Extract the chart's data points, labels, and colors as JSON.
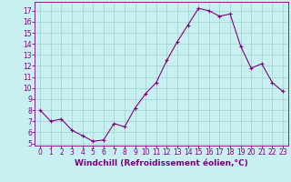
{
  "x": [
    0,
    1,
    2,
    3,
    4,
    5,
    6,
    7,
    8,
    9,
    10,
    11,
    12,
    13,
    14,
    15,
    16,
    17,
    18,
    19,
    20,
    21,
    22,
    23
  ],
  "y": [
    8.0,
    7.0,
    7.2,
    6.2,
    5.7,
    5.2,
    5.3,
    6.8,
    6.5,
    8.2,
    9.5,
    10.5,
    12.5,
    14.2,
    15.7,
    17.2,
    17.0,
    16.5,
    16.7,
    13.8,
    11.8,
    12.2,
    10.5,
    9.7
  ],
  "line_color": "#800080",
  "marker": "+",
  "marker_size": 3,
  "marker_lw": 0.8,
  "line_width": 0.8,
  "bg_color": "#c8f0f0",
  "grid_color": "#a0d0d0",
  "xlabel": "Windchill (Refroidissement éolien,°C)",
  "xlim": [
    -0.5,
    23.5
  ],
  "ylim": [
    4.8,
    17.8
  ],
  "yticks": [
    5,
    6,
    7,
    8,
    9,
    10,
    11,
    12,
    13,
    14,
    15,
    16,
    17
  ],
  "xticks": [
    0,
    1,
    2,
    3,
    4,
    5,
    6,
    7,
    8,
    9,
    10,
    11,
    12,
    13,
    14,
    15,
    16,
    17,
    18,
    19,
    20,
    21,
    22,
    23
  ],
  "tick_color": "#800080",
  "label_color": "#800080",
  "spine_color": "#800080",
  "font_size_label": 6.5,
  "font_size_tick": 5.5
}
